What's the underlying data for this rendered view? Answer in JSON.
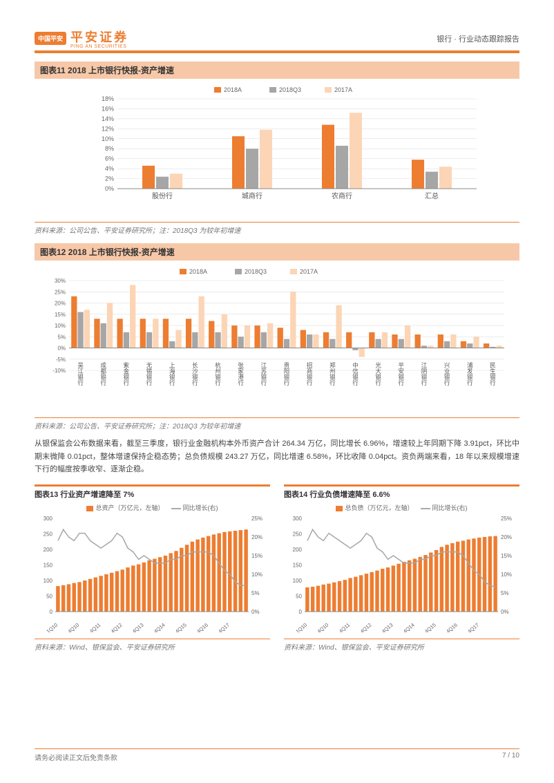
{
  "header": {
    "logo_badge": "中国平安",
    "logo_text": "平安证券",
    "logo_sub": "PING AN SECURITIES",
    "right_text": "银行 · 行业动态跟踪报告"
  },
  "colors": {
    "series_2018A": "#ed7d31",
    "series_2018Q3": "#a6a6a6",
    "series_2017A": "#fbd5b5",
    "axis": "#888888",
    "grid": "#d9d9d9",
    "line_gray": "#a6a6a6",
    "bar_orange": "#ed7d31"
  },
  "chart11": {
    "title": "图表11   2018 上市银行快报-资产增速",
    "legend": [
      "2018A",
      "2018Q3",
      "2017A"
    ],
    "categories": [
      "股份行",
      "城商行",
      "农商行",
      "汇总"
    ],
    "series": {
      "2018A": [
        4.6,
        10.5,
        12.8,
        5.8
      ],
      "2018Q3": [
        2.4,
        8.0,
        8.6,
        3.4
      ],
      "2017A": [
        3.0,
        11.8,
        15.2,
        4.4
      ]
    },
    "ylim": [
      0,
      18
    ],
    "ytick_step": 2,
    "y_suffix": "%",
    "source": "资料来源：公司公告、平安证券研究所；注：2018Q3 为较年初增速"
  },
  "chart12": {
    "title": "图表12   2018 上市银行快报-资产增速",
    "legend": [
      "2018A",
      "2018Q3",
      "2017A"
    ],
    "categories": [
      "吴江银行",
      "成都银行",
      "紫金银行",
      "无锡银行",
      "上海银行",
      "长沙银行",
      "杭州银行",
      "张家港行",
      "江苏银行",
      "贵阳银行",
      "招商银行",
      "郑州银行",
      "中信银行",
      "光大银行",
      "平安银行",
      "江阴银行",
      "兴业银行",
      "浦发银行",
      "民生银行"
    ],
    "series": {
      "2018A": [
        23,
        13,
        13,
        13,
        13,
        13,
        12,
        10,
        10,
        9,
        8,
        7,
        7,
        7,
        6,
        6,
        6,
        3,
        2
      ],
      "2018Q3": [
        16,
        11,
        7,
        7,
        3,
        7,
        7,
        5,
        7,
        4,
        6,
        4,
        -1,
        4,
        4,
        1,
        3,
        2,
        0.5
      ],
      "2017A": [
        17,
        20,
        28,
        13,
        8,
        23,
        15,
        10,
        11,
        25,
        6,
        19,
        -4,
        7,
        10,
        1,
        6,
        5,
        1
      ]
    },
    "ylim": [
      -10,
      30
    ],
    "ytick_step": 5,
    "y_suffix": "%",
    "source": "资料来源：公司公告、平安证券研究所；注：2018Q3 为较年初增速"
  },
  "body_text": "从银保监会公布数据来看，截至三季度，银行业金融机构本外币资产合计 264.34 万亿，同比增长 6.96%，增速较上年同期下降 3.91pct，环比中期末微降 0.01pct，整体增速保持企稳态势；总负债规模 243.27 万亿，同比增速 6.58%，环比收降 0.04pct。资负两端来看，18 年以来规模增速下行的幅度按季收窄、逐渐企稳。",
  "chart13": {
    "title": "图表13   行业资产增速降至 7%",
    "legend_bar": "总资产（万亿元，左轴）",
    "legend_line": "同比增长(右)",
    "x_categories": [
      "1Q10",
      "4Q10",
      "4Q11",
      "4Q12",
      "4Q13",
      "4Q14",
      "4Q15",
      "4Q16",
      "4Q17"
    ],
    "bar_values": [
      82,
      85,
      88,
      92,
      95,
      100,
      105,
      110,
      115,
      120,
      125,
      130,
      135,
      142,
      148,
      152,
      158,
      165,
      170,
      175,
      180,
      188,
      195,
      205,
      215,
      225,
      232,
      238,
      243,
      248,
      252,
      256,
      258,
      260,
      262,
      264
    ],
    "line_values": [
      19,
      22,
      20,
      19,
      21,
      21,
      19,
      18,
      17,
      18,
      19,
      21,
      20,
      17,
      16,
      14,
      15,
      14,
      13,
      13,
      13,
      14,
      14,
      15,
      15,
      16,
      16,
      16,
      16,
      15,
      13,
      11,
      10,
      8,
      7,
      7
    ],
    "ylim_left": [
      0,
      300
    ],
    "ytick_left": 50,
    "ylim_right": [
      0,
      25
    ],
    "ytick_right": 5,
    "y_right_suffix": "%",
    "source": "资料来源：Wind、银保监会、平安证券研究所"
  },
  "chart14": {
    "title": "图表14   行业负债增速降至 6.6%",
    "legend_bar": "总负债（万亿元，左轴）",
    "legend_line": "同比增长(右)",
    "x_categories": [
      "1Q10",
      "4Q10",
      "4Q11",
      "4Q12",
      "4Q13",
      "4Q14",
      "4Q15",
      "4Q16",
      "4Q17"
    ],
    "bar_values": [
      78,
      80,
      83,
      87,
      90,
      94,
      98,
      102,
      108,
      112,
      117,
      122,
      127,
      132,
      138,
      142,
      148,
      154,
      160,
      165,
      170,
      176,
      182,
      190,
      198,
      208,
      215,
      220,
      225,
      228,
      232,
      235,
      238,
      240,
      242,
      243
    ],
    "line_values": [
      19,
      22,
      20,
      19,
      21,
      20,
      19,
      18,
      17,
      18,
      19,
      21,
      20,
      17,
      16,
      14,
      15,
      14,
      13,
      13,
      13,
      14,
      14,
      15,
      15,
      16,
      16,
      16,
      16,
      15,
      13,
      11,
      10,
      8,
      7,
      6.6
    ],
    "ylim_left": [
      0,
      300
    ],
    "ytick_left": 50,
    "ylim_right": [
      0,
      25
    ],
    "ytick_right": 5,
    "y_right_suffix": "%",
    "source": "资料来源：Wind、银保监会、平安证券研究所"
  },
  "footer": {
    "left": "请务必阅读正文后免责条款",
    "right": "7 / 10"
  }
}
